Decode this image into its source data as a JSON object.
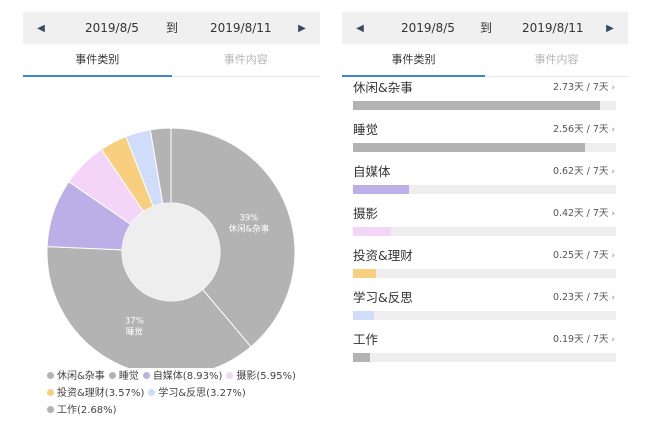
{
  "date_range": {
    "start": "2019/8/5",
    "separator": "到",
    "end": "2019/8/11"
  },
  "right_date_range": {
    "start": "2019/8/5",
    "separator": "到",
    "end": "2019/8/11"
  },
  "tabs": {
    "category": "事件类别",
    "content": "事件内容"
  },
  "colors": {
    "accent": "#3c84cc",
    "track": "#eeeeee"
  },
  "icons": {
    "prev": "triangle-left-icon",
    "next": "triangle-right-icon",
    "chevron": "chevron-right-icon"
  },
  "chart_data": {
    "type": "pie",
    "style": "donut",
    "slices": [
      {
        "label": "休闲&杂事",
        "value": 39,
        "slice_label": "39%",
        "color": "#b3b3b3"
      },
      {
        "label": "睡觉",
        "value": 37,
        "slice_label": "37%",
        "color": "#b3b3b3"
      },
      {
        "label": "自媒体",
        "value": 8.93,
        "color": "#bcaee6"
      },
      {
        "label": "摄影",
        "value": 5.95,
        "color": "#f4d5f8"
      },
      {
        "label": "投资&理财",
        "value": 3.57,
        "color": "#f8cf7e"
      },
      {
        "label": "学习&反思",
        "value": 3.27,
        "color": "#cfdcfa"
      },
      {
        "label": "工作",
        "value": 2.68,
        "color": "#b3b3b3"
      }
    ],
    "legend_rows": [
      [
        {
          "text": "休闲&杂事",
          "color": "#b3b3b3"
        },
        {
          "text": "睡觉",
          "color": "#b3b3b3"
        },
        {
          "text": "自媒体(8.93%)",
          "color": "#bcaee6"
        },
        {
          "text": "摄影(5.95%)",
          "color": "#f4d5f8"
        }
      ],
      [
        {
          "text": "投资&理财(3.57%)",
          "color": "#f8cf7e"
        },
        {
          "text": "学习&反思(3.27%)",
          "color": "#cfdcfa"
        }
      ],
      [
        {
          "text": "工作(2.68%)",
          "color": "#b3b3b3"
        }
      ]
    ],
    "legend_position": "bottom-left"
  },
  "categories": [
    {
      "name": "休闲&杂事",
      "days": 2.73,
      "value_text": "2.73天 / 7天",
      "color": "#b3b3b3"
    },
    {
      "name": "睡觉",
      "days": 2.56,
      "value_text": "2.56天 / 7天",
      "color": "#b3b3b3"
    },
    {
      "name": "自媒体",
      "days": 0.62,
      "value_text": "0.62天 / 7天",
      "color": "#bcaee6"
    },
    {
      "name": "摄影",
      "days": 0.42,
      "value_text": "0.42天 / 7天",
      "color": "#f4d5f8"
    },
    {
      "name": "投资&理财",
      "days": 0.25,
      "value_text": "0.25天 / 7天",
      "color": "#f8cf7e"
    },
    {
      "name": "学习&反思",
      "days": 0.23,
      "value_text": "0.23天 / 7天",
      "color": "#cfdcfa"
    },
    {
      "name": "工作",
      "days": 0.19,
      "value_text": "0.19天 / 7天",
      "color": "#b3b3b3"
    }
  ],
  "total_days": 7
}
